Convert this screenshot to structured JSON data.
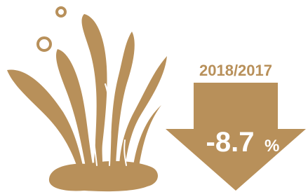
{
  "change": {
    "period": "2018/2017",
    "value": "-8.7",
    "unit": "%"
  }
}
